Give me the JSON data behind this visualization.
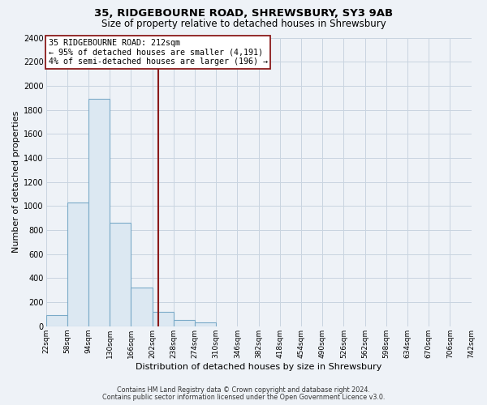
{
  "title": "35, RIDGEBOURNE ROAD, SHREWSBURY, SY3 9AB",
  "subtitle": "Size of property relative to detached houses in Shrewsbury",
  "xlabel": "Distribution of detached houses by size in Shrewsbury",
  "ylabel": "Number of detached properties",
  "bar_edges": [
    22,
    58,
    94,
    130,
    166,
    202,
    238,
    274,
    310,
    346,
    382,
    418,
    454,
    490,
    526,
    562,
    598,
    634,
    670,
    706,
    742
  ],
  "bar_heights": [
    90,
    1030,
    1890,
    860,
    320,
    120,
    50,
    30,
    0,
    0,
    0,
    0,
    0,
    0,
    0,
    0,
    0,
    0,
    0,
    0
  ],
  "bar_color": "#dce8f2",
  "bar_edgecolor": "#7aaac8",
  "property_line_x": 212,
  "property_line_color": "#8b1a1a",
  "annotation_line1": "35 RIDGEBOURNE ROAD: 212sqm",
  "annotation_line2": "← 95% of detached houses are smaller (4,191)",
  "annotation_line3": "4% of semi-detached houses are larger (196) →",
  "annotation_box_facecolor": "#ffffff",
  "annotation_box_edgecolor": "#8b1a1a",
  "ylim": [
    0,
    2400
  ],
  "yticks": [
    0,
    200,
    400,
    600,
    800,
    1000,
    1200,
    1400,
    1600,
    1800,
    2000,
    2200,
    2400
  ],
  "tick_labels": [
    "22sqm",
    "58sqm",
    "94sqm",
    "130sqm",
    "166sqm",
    "202sqm",
    "238sqm",
    "274sqm",
    "310sqm",
    "346sqm",
    "382sqm",
    "418sqm",
    "454sqm",
    "490sqm",
    "526sqm",
    "562sqm",
    "598sqm",
    "634sqm",
    "670sqm",
    "706sqm",
    "742sqm"
  ],
  "footnote1": "Contains HM Land Registry data © Crown copyright and database right 2024.",
  "footnote2": "Contains public sector information licensed under the Open Government Licence v3.0.",
  "grid_color": "#c8d4e0",
  "plot_bg_color": "#eef2f7",
  "fig_bg_color": "#eef2f7"
}
